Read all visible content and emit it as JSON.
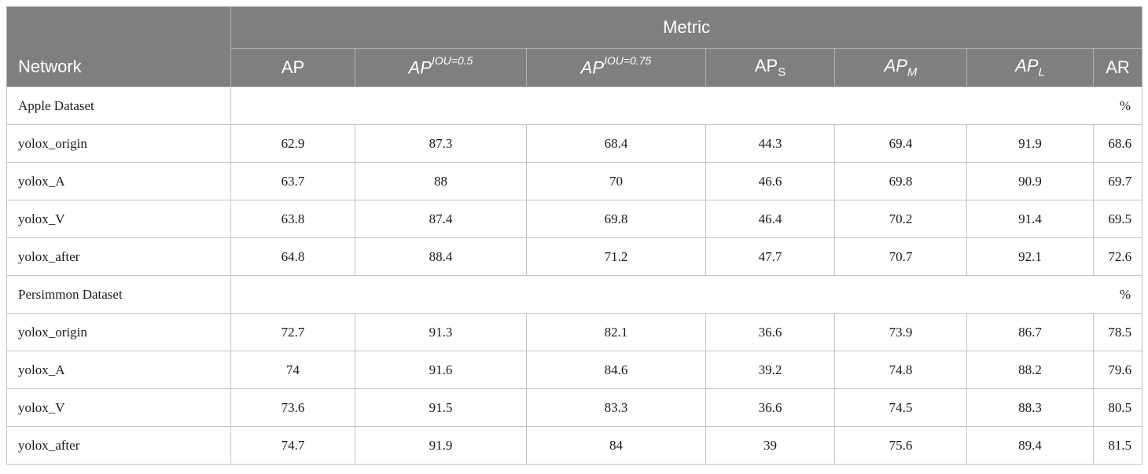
{
  "header": {
    "network": "Network",
    "metric": "Metric",
    "columns": [
      {
        "base": "AP"
      },
      {
        "base": "AP",
        "sup": "IOU=0.5"
      },
      {
        "base": "AP",
        "sup": "IOU=0.75"
      },
      {
        "base": "AP",
        "sub": "S"
      },
      {
        "base": "AP",
        "sub": "M"
      },
      {
        "base": "AP",
        "sub": "L"
      },
      {
        "base": "AR"
      }
    ]
  },
  "sections": [
    {
      "title": "Apple Dataset",
      "unit": "%",
      "rows": [
        {
          "name": "yolox_origin",
          "values": [
            "62.9",
            "87.3",
            "68.4",
            "44.3",
            "69.4",
            "91.9",
            "68.6"
          ]
        },
        {
          "name": "yolox_A",
          "values": [
            "63.7",
            "88",
            "70",
            "46.6",
            "69.8",
            "90.9",
            "69.7"
          ]
        },
        {
          "name": "yolox_V",
          "values": [
            "63.8",
            "87.4",
            "69.8",
            "46.4",
            "70.2",
            "91.4",
            "69.5"
          ]
        },
        {
          "name": "yolox_after",
          "values": [
            "64.8",
            "88.4",
            "71.2",
            "47.7",
            "70.7",
            "92.1",
            "72.6"
          ]
        }
      ]
    },
    {
      "title": "Persimmon Dataset",
      "unit": "%",
      "rows": [
        {
          "name": "yolox_origin",
          "values": [
            "72.7",
            "91.3",
            "82.1",
            "36.6",
            "73.9",
            "86.7",
            "78.5"
          ]
        },
        {
          "name": "yolox_A",
          "values": [
            "74",
            "91.6",
            "84.6",
            "39.2",
            "74.8",
            "88.2",
            "79.6"
          ]
        },
        {
          "name": "yolox_V",
          "values": [
            "73.6",
            "91.5",
            "83.3",
            "36.6",
            "74.5",
            "88.3",
            "80.5"
          ]
        },
        {
          "name": "yolox_after",
          "values": [
            "74.7",
            "91.9",
            "84",
            "39",
            "75.6",
            "89.4",
            "81.5"
          ]
        }
      ]
    }
  ]
}
